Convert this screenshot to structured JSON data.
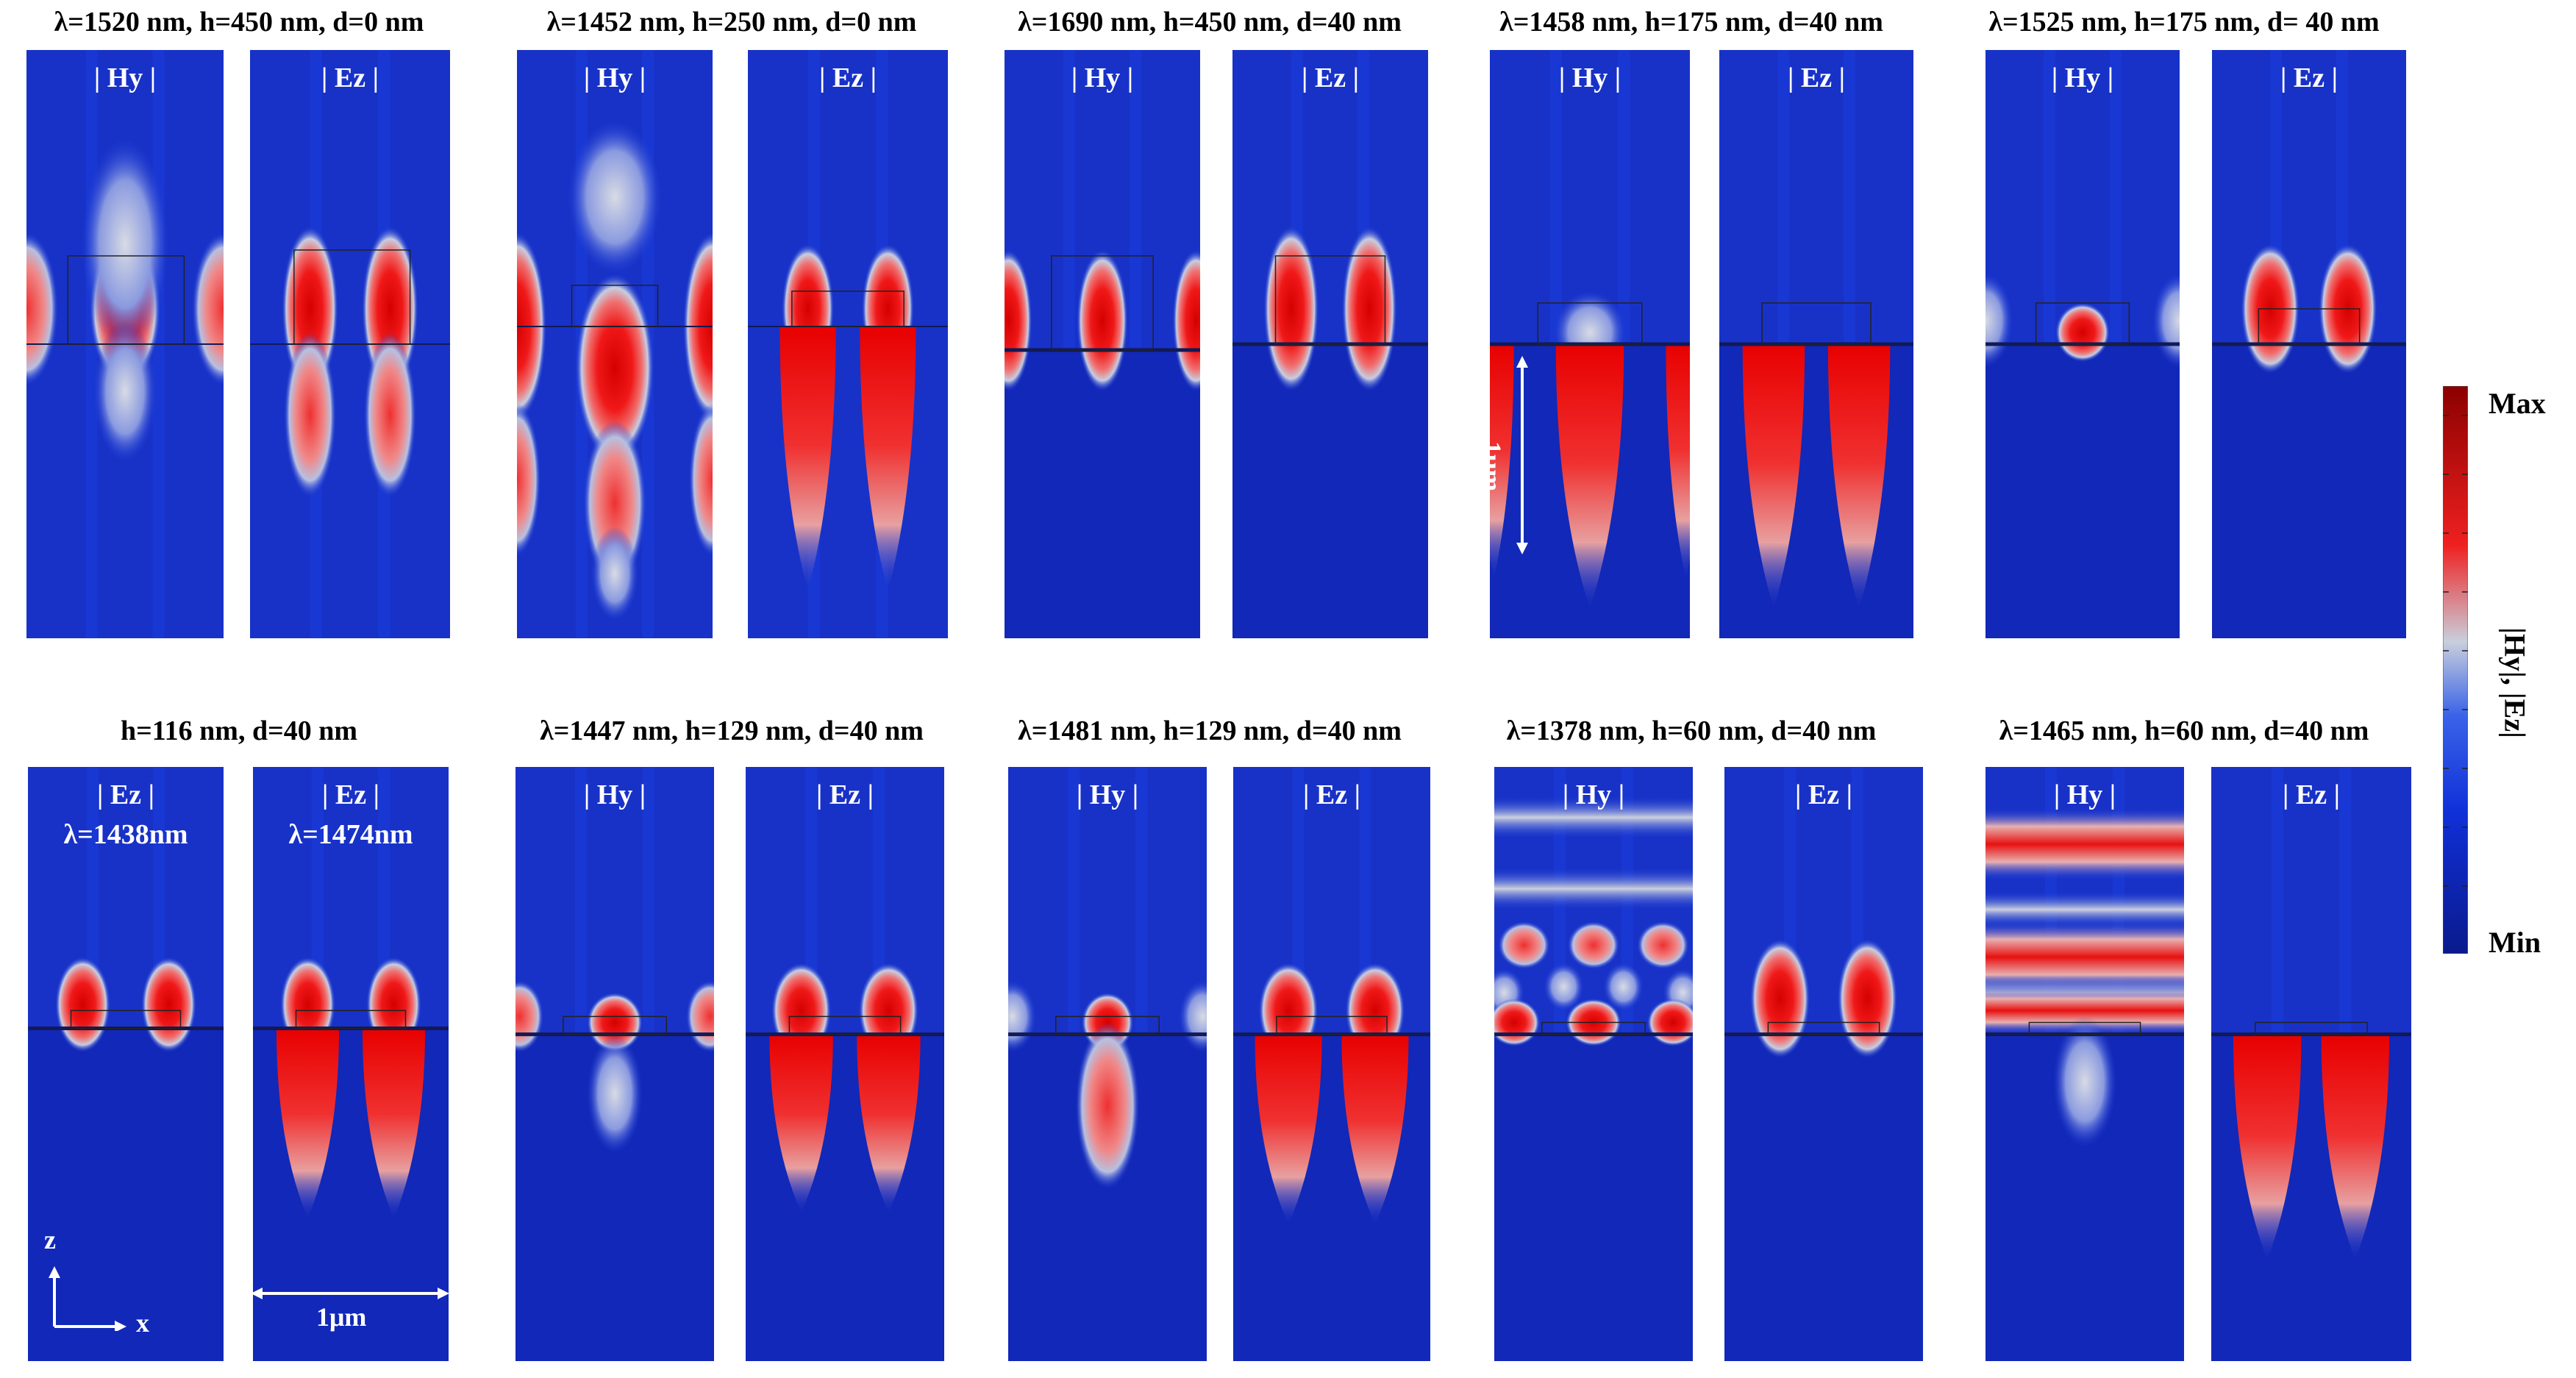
{
  "figure": {
    "rows": [
      {
        "groups": [
          {
            "title": "λ=1520 nm, h=450 nm, d=0 nm",
            "panels": [
              {
                "label": "| Hy |",
                "mode": "a"
              },
              {
                "label": "| Ez |",
                "mode": "b"
              }
            ]
          },
          {
            "title": "λ=1452 nm, h=250 nm, d=0 nm",
            "panels": [
              {
                "label": "| Hy |",
                "mode": "c"
              },
              {
                "label": "| Ez |",
                "mode": "d"
              }
            ]
          },
          {
            "title": "λ=1690 nm, h=450 nm, d=40 nm",
            "panels": [
              {
                "label": "| Hy |",
                "mode": "e"
              },
              {
                "label": "| Ez |",
                "mode": "f"
              }
            ]
          },
          {
            "title": "λ=1458 nm, h=175 nm, d=40 nm",
            "panels": [
              {
                "label": "| Hy |",
                "mode": "g"
              },
              {
                "label": "| Ez |",
                "mode": "h"
              }
            ]
          },
          {
            "title": "λ=1525 nm, h=175 nm, d= 40 nm",
            "panels": [
              {
                "label": "| Hy |",
                "mode": "i"
              },
              {
                "label": "| Ez |",
                "mode": "j"
              }
            ]
          }
        ]
      },
      {
        "groups": [
          {
            "title": "h=116 nm, d=40 nm",
            "panels": [
              {
                "label": "| Ez |",
                "sublabel": "λ=1438nm",
                "mode": "k"
              },
              {
                "label": "| Ez |",
                "sublabel": "λ=1474nm",
                "mode": "l"
              }
            ]
          },
          {
            "title": "λ=1447 nm, h=129 nm, d=40 nm",
            "panels": [
              {
                "label": "| Hy |",
                "mode": "m"
              },
              {
                "label": "| Ez |",
                "mode": "n"
              }
            ]
          },
          {
            "title": "λ=1481 nm, h=129 nm, d=40 nm",
            "panels": [
              {
                "label": "| Hy |",
                "mode": "o"
              },
              {
                "label": "| Ez |",
                "mode": "p"
              }
            ]
          },
          {
            "title": "λ=1378 nm, h=60 nm, d=40 nm",
            "panels": [
              {
                "label": "| Hy |",
                "mode": "q"
              },
              {
                "label": "| Ez |",
                "mode": "r"
              }
            ]
          },
          {
            "title": "λ=1465 nm, h=60 nm, d=40 nm",
            "panels": [
              {
                "label": "| Hy |",
                "mode": "s"
              },
              {
                "label": "| Ez |",
                "mode": "t"
              }
            ]
          }
        ]
      }
    ],
    "annotations": {
      "scale_vertical": "1μm",
      "scale_horizontal": "1μm",
      "axis_z": "z",
      "axis_x": "x"
    },
    "colorbar": {
      "max_label": "Max",
      "min_label": "Min",
      "quantity_label": "|Hy|, |Ez|",
      "colors": [
        "#0a1a8c",
        "#1030d8",
        "#3a63e8",
        "#c9cfdc",
        "#ef2020",
        "#8b0000"
      ]
    }
  }
}
